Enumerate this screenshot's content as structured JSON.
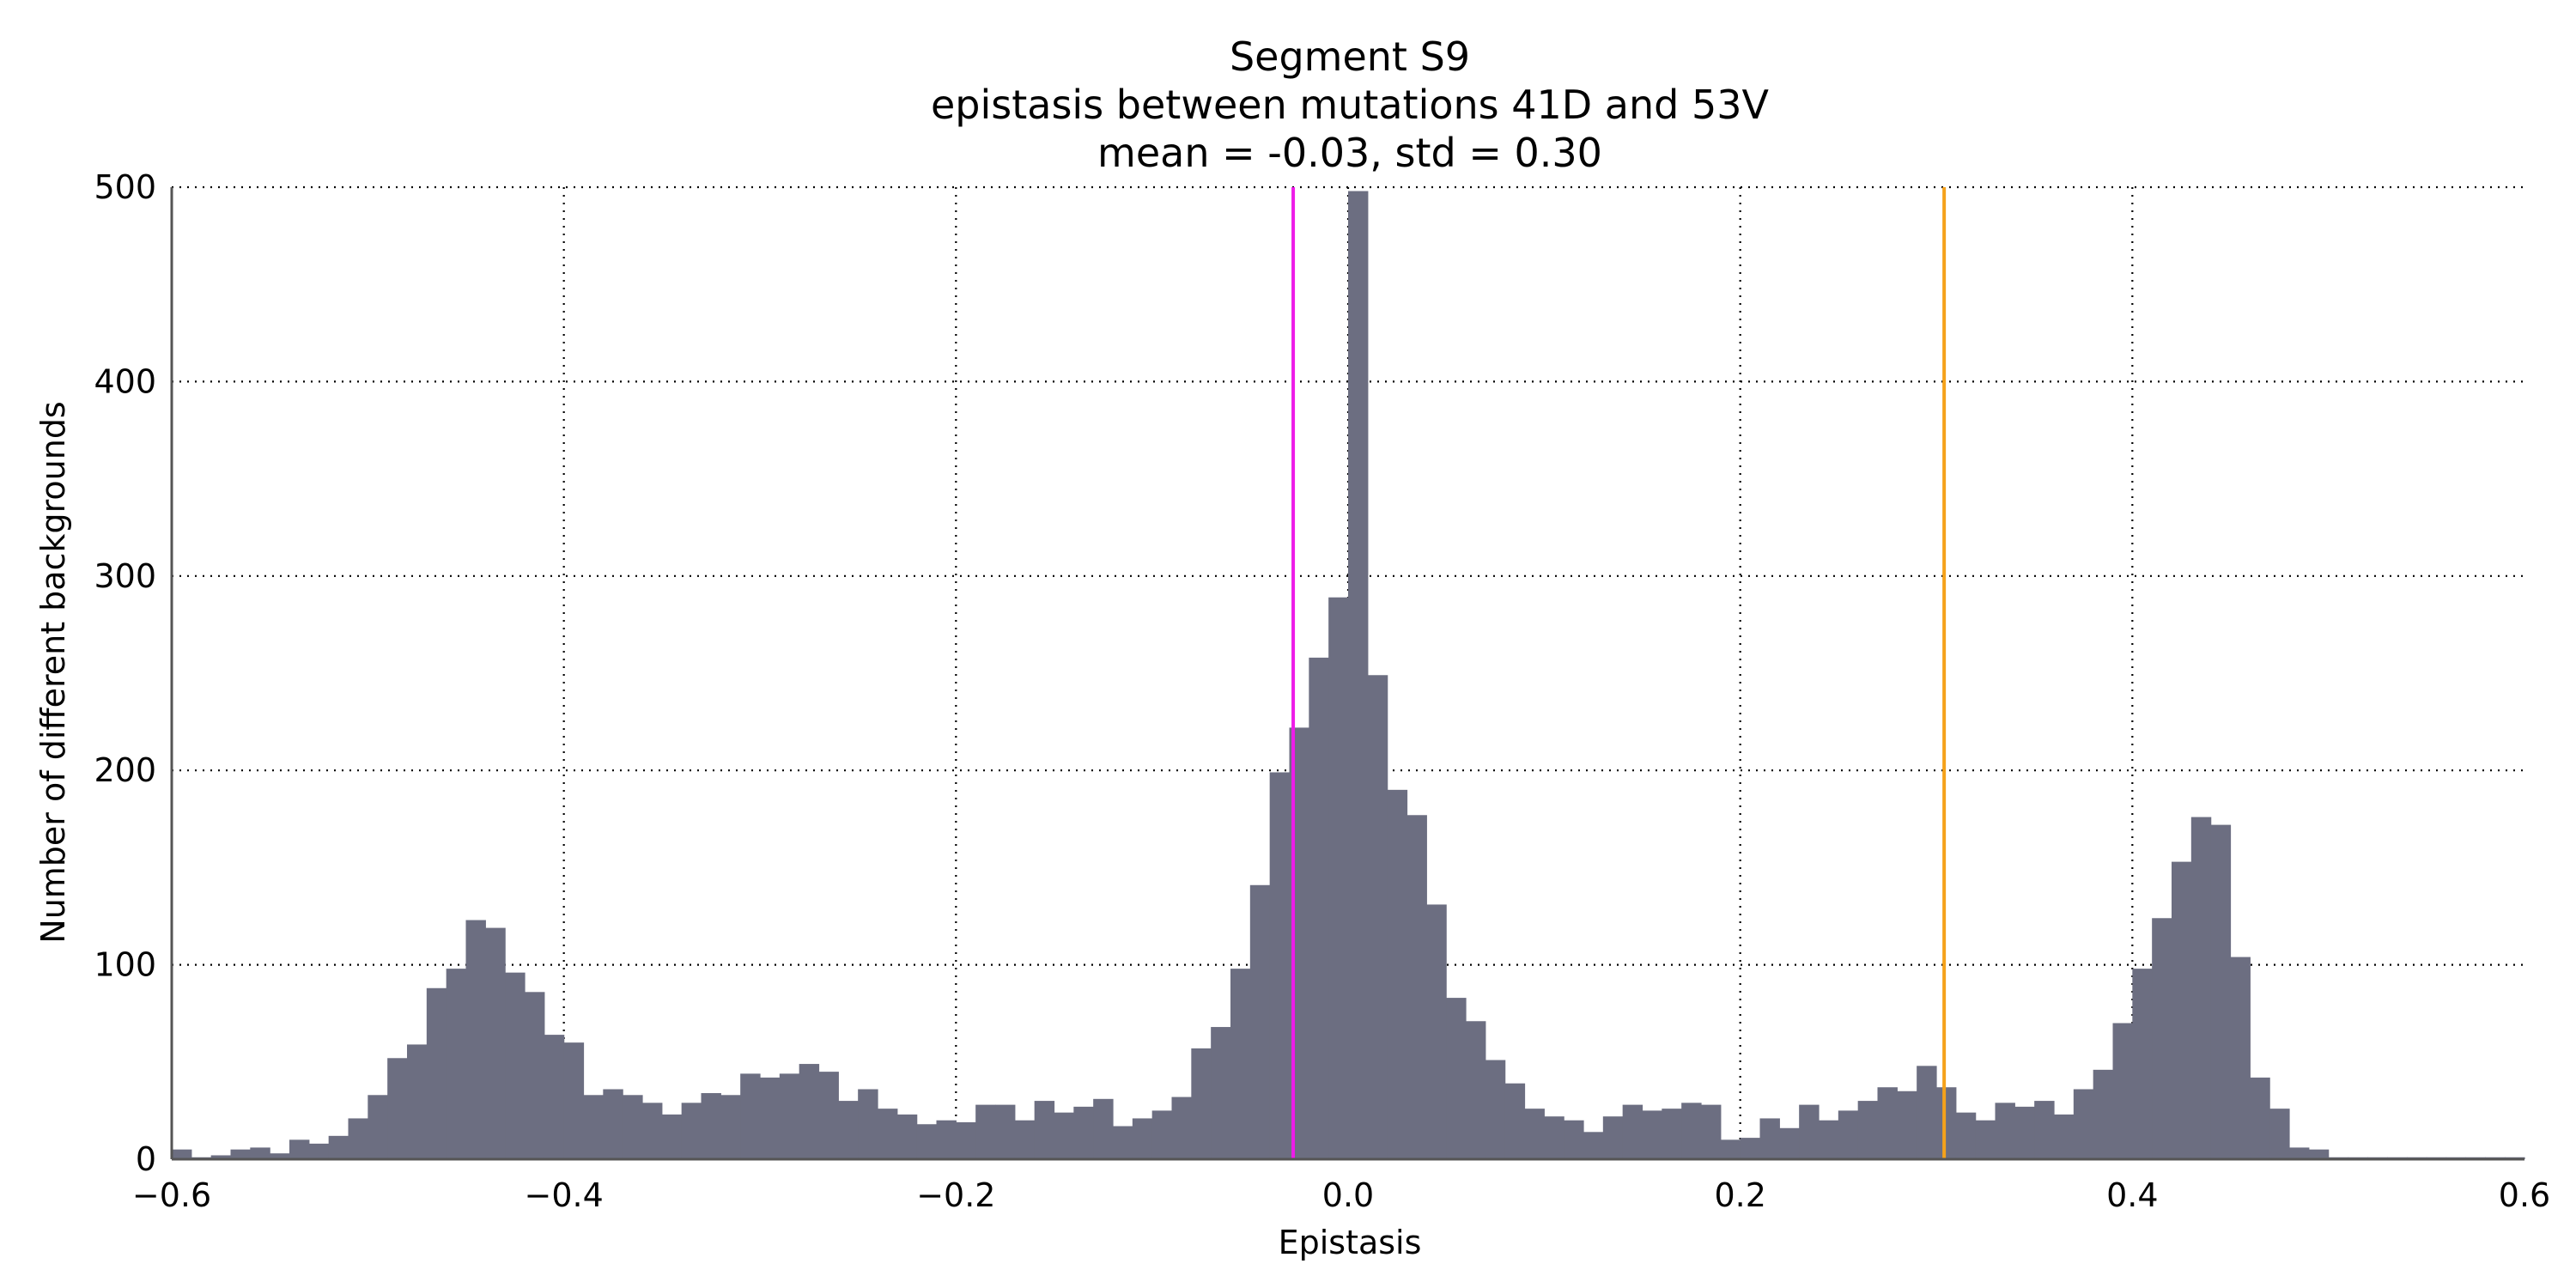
{
  "chart_data": {
    "type": "bar",
    "title_lines": [
      "Segment S9",
      "epistasis between mutations 41D and 53V",
      "mean = -0.03, std = 0.30"
    ],
    "xlabel": "Epistasis",
    "ylabel": "Number of different backgrounds",
    "xlim": [
      -0.6,
      0.6
    ],
    "ylim": [
      0,
      500
    ],
    "xticks": [
      -0.6,
      -0.4,
      -0.2,
      0.0,
      0.2,
      0.4,
      0.6
    ],
    "xtick_labels": [
      "−0.6",
      "−0.4",
      "−0.2",
      "0.0",
      "0.2",
      "0.4",
      "0.6"
    ],
    "yticks": [
      0,
      100,
      200,
      300,
      400,
      500
    ],
    "ytick_labels": [
      "0",
      "100",
      "200",
      "300",
      "400",
      "500"
    ],
    "grid": true,
    "bin_start": -0.6,
    "bin_width": 0.01,
    "values": [
      5,
      1,
      2,
      5,
      6,
      3,
      10,
      8,
      12,
      21,
      33,
      52,
      59,
      88,
      98,
      123,
      119,
      96,
      86,
      64,
      60,
      33,
      36,
      33,
      29,
      23,
      29,
      34,
      33,
      44,
      42,
      44,
      49,
      45,
      30,
      36,
      26,
      23,
      18,
      20,
      19,
      28,
      28,
      20,
      30,
      24,
      27,
      31,
      17,
      21,
      25,
      32,
      57,
      68,
      98,
      141,
      199,
      222,
      258,
      289,
      498,
      249,
      190,
      177,
      131,
      83,
      71,
      51,
      39,
      26,
      22,
      20,
      14,
      22,
      28,
      25,
      26,
      29,
      28,
      10,
      11,
      21,
      16,
      28,
      20,
      25,
      30,
      37,
      35,
      48,
      37,
      24,
      20,
      29,
      27,
      30,
      23,
      36,
      46,
      70,
      98,
      124,
      153,
      176,
      172,
      104,
      42,
      26,
      6,
      5,
      1,
      1,
      1,
      1,
      1,
      1,
      1,
      1,
      1,
      1
    ],
    "bar_color": "#6c6e81",
    "vlines": [
      {
        "x": -0.028,
        "color": "#ee1ce8"
      },
      {
        "x": 0.304,
        "color": "#f5a21b"
      }
    ]
  }
}
